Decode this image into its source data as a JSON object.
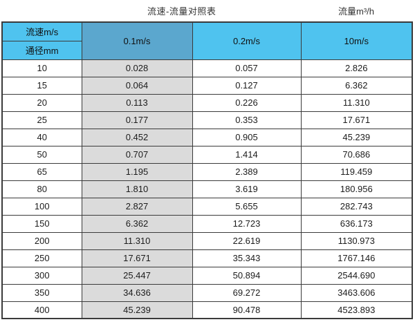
{
  "caption": {
    "title": "流速-流量对照表",
    "unit_label": "流量m³/h"
  },
  "table": {
    "header": {
      "velocity_label": "流速m/s",
      "diameter_label": "通径mm",
      "columns": [
        "0.1m/s",
        "0.2m/s",
        "10m/s"
      ]
    },
    "rows": [
      [
        "10",
        "0.028",
        "0.057",
        "2.826"
      ],
      [
        "15",
        "0.064",
        "0.127",
        "6.362"
      ],
      [
        "20",
        "0.113",
        "0.226",
        "11.310"
      ],
      [
        "25",
        "0.177",
        "0.353",
        "17.671"
      ],
      [
        "40",
        "0.452",
        "0.905",
        "45.239"
      ],
      [
        "50",
        "0.707",
        "1.414",
        "70.686"
      ],
      [
        "65",
        "1.195",
        "2.389",
        "119.459"
      ],
      [
        "80",
        "1.810",
        "3.619",
        "180.956"
      ],
      [
        "100",
        "2.827",
        "5.655",
        "282.743"
      ],
      [
        "150",
        "6.362",
        "12.723",
        "636.173"
      ],
      [
        "200",
        "11.310",
        "22.619",
        "1130.973"
      ],
      [
        "250",
        "17.671",
        "35.343",
        "1767.146"
      ],
      [
        "300",
        "25.447",
        "50.894",
        "2544.690"
      ],
      [
        "350",
        "34.636",
        "69.272",
        "3463.606"
      ],
      [
        "400",
        "45.239",
        "90.478",
        "4523.893"
      ]
    ]
  },
  "colors": {
    "header_blue": "#4fc3ef",
    "header_selected_blue": "#5ba7ce",
    "highlight_column_gray": "#dbdbdb",
    "border": "#3a3a3a",
    "text": "#1c1c1c"
  },
  "chart_data": {
    "type": "table",
    "title": "流速-流量对照表",
    "unit": "流量m³/h",
    "row_header": "通径mm",
    "column_header": "流速m/s",
    "columns": [
      "0.1m/s",
      "0.2m/s",
      "10m/s"
    ],
    "diameters_mm": [
      10,
      15,
      20,
      25,
      40,
      50,
      65,
      80,
      100,
      150,
      200,
      250,
      300,
      350,
      400
    ],
    "series": [
      {
        "name": "0.1m/s",
        "values": [
          0.028,
          0.064,
          0.113,
          0.177,
          0.452,
          0.707,
          1.195,
          1.81,
          2.827,
          6.362,
          11.31,
          17.671,
          25.447,
          34.636,
          45.239
        ]
      },
      {
        "name": "0.2m/s",
        "values": [
          0.057,
          0.127,
          0.226,
          0.353,
          0.905,
          1.414,
          2.389,
          3.619,
          5.655,
          12.723,
          22.619,
          35.343,
          50.894,
          69.272,
          90.478
        ]
      },
      {
        "name": "10m/s",
        "values": [
          2.826,
          6.362,
          11.31,
          17.671,
          45.239,
          70.686,
          119.459,
          180.956,
          282.743,
          636.173,
          1130.973,
          1767.146,
          2544.69,
          3463.606,
          4523.893
        ]
      }
    ]
  }
}
